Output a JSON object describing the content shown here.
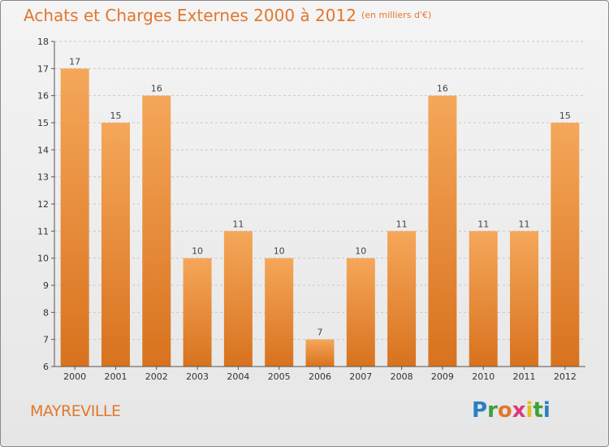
{
  "header": {
    "title": "Achats et Charges Externes 2000 à 2012",
    "unit": "(en milliers d'€)"
  },
  "footer": {
    "commune": "MAYREVILLE",
    "logo_letters": [
      "P",
      "r",
      "o",
      "x",
      "i",
      "t",
      "i"
    ]
  },
  "colors": {
    "accent": "#e2772e",
    "bar_top": "#f5a75a",
    "bar_bottom": "#d8721e"
  },
  "chart_data": {
    "type": "bar",
    "categories": [
      "2000",
      "2001",
      "2002",
      "2003",
      "2004",
      "2005",
      "2006",
      "2007",
      "2008",
      "2009",
      "2010",
      "2011",
      "2012"
    ],
    "values": [
      17,
      15,
      16,
      10,
      11,
      10,
      7,
      10,
      11,
      16,
      11,
      11,
      15
    ],
    "data_labels": [
      "17",
      "15",
      "16",
      "10",
      "11",
      "10",
      "7",
      "10",
      "11",
      "16",
      "11",
      "11",
      "15"
    ],
    "title": "Achats et Charges Externes 2000 à 2012",
    "unit": "(en milliers d'€)",
    "ylim": [
      6,
      18
    ],
    "yticks": [
      "6",
      "7",
      "8",
      "9",
      "10",
      "11",
      "12",
      "13",
      "14",
      "15",
      "16",
      "17",
      "18"
    ],
    "grid": "horizontal dashed",
    "legend": "none"
  }
}
